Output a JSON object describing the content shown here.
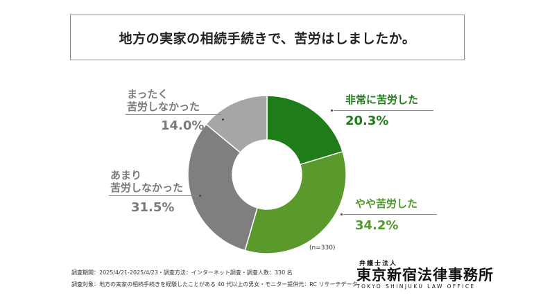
{
  "title": "地方の実家の相続手続きで、苦労はしましたか。",
  "chart_data": {
    "type": "pie",
    "donut": true,
    "categories": [
      "非常に苦労した",
      "やや苦労した",
      "あまり苦労しなかった",
      "まったく苦労しなかった"
    ],
    "values": [
      20.3,
      34.2,
      31.5,
      14.0
    ],
    "value_labels": [
      "20.3%",
      "34.2%",
      "31.5%",
      "14.0%"
    ],
    "colors": [
      "#1e7d19",
      "#5a9a2c",
      "#7f7f7f",
      "#a6a6a6"
    ],
    "start_angle_deg": 0,
    "direction": "clockwise",
    "legend": "none",
    "sample_size": "(n=330)"
  },
  "labels": {
    "very": {
      "text": "非常に苦労した",
      "pct": "20.3%"
    },
    "some": {
      "text": "やや苦労した",
      "pct": "34.2%"
    },
    "little_line1": "あまり",
    "little_line2": "苦労しなかった",
    "little_pct": "31.5%",
    "none_line1": "まったく",
    "none_line2": "苦労しなかった",
    "none_pct": "14.0%"
  },
  "footnote": {
    "line1": "調査期間：2025/4/21-2025/4/23・調査方法：インターネット調査・調査人数：330 名",
    "line2": "調査対象：地方の実家の相続手続きを経験したことがある 40 代以上の男女・モニター提供元：RC リサーチデータ"
  },
  "logo": {
    "sub": "弁護士法人",
    "main": "東京新宿法律事務所",
    "en": "TOKYO SHINJUKU LAW OFFICE"
  }
}
